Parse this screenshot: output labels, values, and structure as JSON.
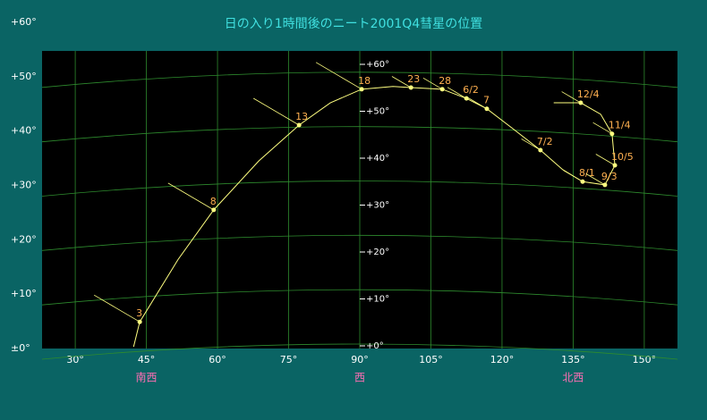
{
  "chart_data": {
    "type": "line",
    "title": "日の入り1時間後のニート2001Q4彗星の位置",
    "x": [
      42.3,
      43.6,
      51.7,
      59.2,
      68.7,
      77.2,
      83.8,
      90.4,
      97.0,
      100.8,
      107.4,
      112.5,
      116.8,
      122.5,
      128.1,
      132.8,
      137.0,
      141.7,
      143.8,
      143.2,
      140.8,
      136.6,
      130.9
    ],
    "values": [
      0.3,
      4.9,
      16.4,
      25.5,
      34.5,
      41.1,
      45.2,
      47.7,
      48.2,
      48.0,
      47.7,
      46.0,
      44.1,
      40.3,
      36.5,
      32.9,
      30.7,
      30.1,
      33.7,
      39.5,
      43.1,
      45.2,
      45.2
    ],
    "labels": [
      null,
      "3",
      null,
      "8",
      null,
      "13",
      null,
      "18",
      null,
      "23",
      "28",
      "6/2",
      "7",
      null,
      "7/2",
      null,
      "8/1",
      "9/3",
      "10/5",
      "11/4",
      null,
      "12/4",
      null
    ],
    "color": "#ffff80",
    "xlim": [
      23,
      157
    ],
    "ylim": [
      0,
      60
    ],
    "xticks": [
      {
        "value": 30,
        "label": "30°"
      },
      {
        "value": 45,
        "label": "45°"
      },
      {
        "value": 60,
        "label": "60°"
      },
      {
        "value": 75,
        "label": "75°"
      },
      {
        "value": 90,
        "label": "90°"
      },
      {
        "value": 105,
        "label": "105°"
      },
      {
        "value": 120,
        "label": "120°"
      },
      {
        "value": 135,
        "label": "135°"
      },
      {
        "value": 150,
        "label": "150°"
      }
    ],
    "yticks": [
      {
        "value": 0,
        "label": "±0°"
      },
      {
        "value": 10,
        "label": "+10°"
      },
      {
        "value": 20,
        "label": "+20°"
      },
      {
        "value": 30,
        "label": "+30°"
      },
      {
        "value": 40,
        "label": "+40°"
      },
      {
        "value": 50,
        "label": "+50°"
      },
      {
        "value": 60,
        "label": "+60°"
      }
    ],
    "inner_yticks": [
      {
        "value": 0,
        "label": "+0°"
      },
      {
        "value": 10,
        "label": "+10°"
      },
      {
        "value": 20,
        "label": "+20°"
      },
      {
        "value": 30,
        "label": "+30°"
      },
      {
        "value": 40,
        "label": "+40°"
      },
      {
        "value": 50,
        "label": "+50°"
      },
      {
        "value": 60,
        "label": "+60°"
      }
    ],
    "directions": [
      {
        "value": 45,
        "label": "南西"
      },
      {
        "value": 90,
        "label": "西"
      },
      {
        "value": 135,
        "label": "北西"
      }
    ],
    "grid": true
  }
}
